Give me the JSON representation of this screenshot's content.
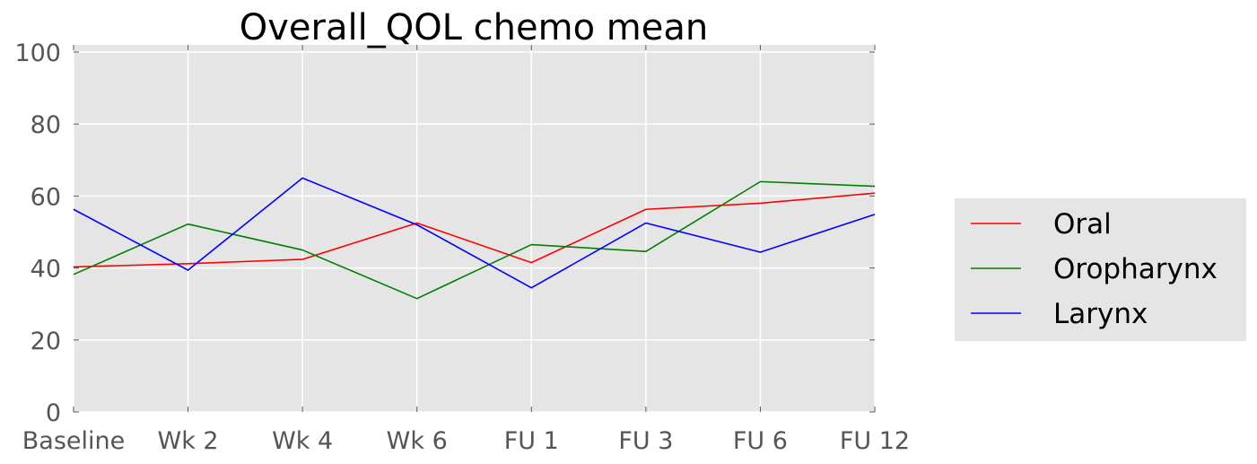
{
  "chart_data": {
    "type": "line",
    "title": "Overall_QOL chemo  mean",
    "xlabel": "",
    "ylabel": "",
    "categories": [
      "Baseline",
      "Wk 2",
      "Wk 4",
      "Wk 6",
      "FU 1",
      "FU 3",
      "FU 6",
      "FU 12"
    ],
    "yticks": [
      0,
      20,
      40,
      60,
      80,
      100
    ],
    "ylim": [
      0,
      102
    ],
    "grid": true,
    "legend_position": "right",
    "series": [
      {
        "name": "Oral",
        "color": "#ff0000",
        "values": [
          40.3,
          41.2,
          42.4,
          52.5,
          41.5,
          56.3,
          58.0,
          60.8
        ]
      },
      {
        "name": "Oropharynx",
        "color": "#008000",
        "values": [
          38.2,
          52.2,
          45.0,
          31.5,
          46.5,
          44.6,
          64.0,
          62.7
        ]
      },
      {
        "name": "Larynx",
        "color": "#0000ff",
        "values": [
          56.3,
          39.4,
          65.0,
          52.0,
          34.5,
          52.5,
          44.4,
          54.9
        ]
      }
    ]
  }
}
